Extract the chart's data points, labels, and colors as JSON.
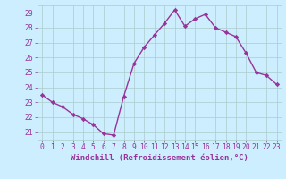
{
  "x": [
    0,
    1,
    2,
    3,
    4,
    5,
    6,
    7,
    8,
    9,
    10,
    11,
    12,
    13,
    14,
    15,
    16,
    17,
    18,
    19,
    20,
    21,
    22,
    23
  ],
  "y": [
    23.5,
    23.0,
    22.7,
    22.2,
    21.9,
    21.5,
    20.9,
    20.8,
    23.4,
    25.6,
    26.7,
    27.5,
    28.3,
    29.2,
    28.1,
    28.6,
    28.9,
    28.0,
    27.7,
    27.4,
    26.3,
    25.0,
    24.8,
    24.2
  ],
  "line_color": "#993399",
  "marker": "D",
  "marker_size": 2.2,
  "linewidth": 1.0,
  "xlabel": "Windchill (Refroidissement éolien,°C)",
  "xlim": [
    -0.5,
    23.5
  ],
  "ylim": [
    20.5,
    29.5
  ],
  "yticks": [
    21,
    22,
    23,
    24,
    25,
    26,
    27,
    28,
    29
  ],
  "xticks": [
    0,
    1,
    2,
    3,
    4,
    5,
    6,
    7,
    8,
    9,
    10,
    11,
    12,
    13,
    14,
    15,
    16,
    17,
    18,
    19,
    20,
    21,
    22,
    23
  ],
  "background_color": "#cceeff",
  "grid_color": "#aacccc",
  "line_border_color": "#7755aa",
  "tick_color": "#993399",
  "label_color": "#993399",
  "xlabel_fontsize": 6.5,
  "tick_fontsize": 5.8
}
